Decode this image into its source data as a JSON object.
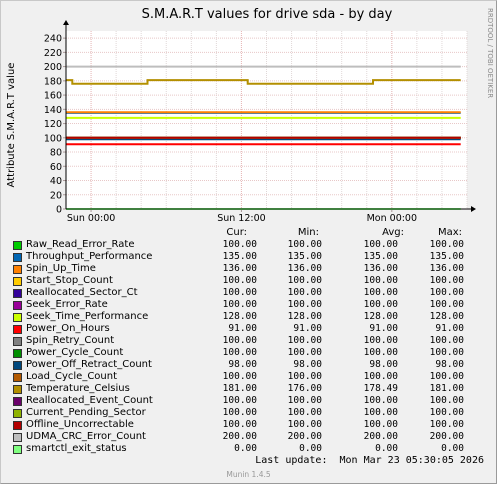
{
  "title": "S.M.A.R.T values for drive sda - by day",
  "ylabel": "Attribute S.M.A.R.T value",
  "watermark": "RRDTOOL / TOBI OETIKER",
  "legend_headers": {
    "cur": "Cur:",
    "min": "Min:",
    "avg": "Avg:",
    "max": "Max:"
  },
  "legend": [
    {
      "name": "Raw_Read_Error_Rate",
      "color": "#00cc00",
      "cur": "100.00",
      "min": "100.00",
      "avg": "100.00",
      "max": "100.00"
    },
    {
      "name": "Throughput_Performance",
      "color": "#0066b3",
      "cur": "135.00",
      "min": "135.00",
      "avg": "135.00",
      "max": "135.00"
    },
    {
      "name": "Spin_Up_Time",
      "color": "#ff8000",
      "cur": "136.00",
      "min": "136.00",
      "avg": "136.00",
      "max": "136.00"
    },
    {
      "name": "Start_Stop_Count",
      "color": "#ffcc00",
      "cur": "100.00",
      "min": "100.00",
      "avg": "100.00",
      "max": "100.00"
    },
    {
      "name": "Reallocated_Sector_Ct",
      "color": "#330099",
      "cur": "100.00",
      "min": "100.00",
      "avg": "100.00",
      "max": "100.00"
    },
    {
      "name": "Seek_Error_Rate",
      "color": "#990099",
      "cur": "100.00",
      "min": "100.00",
      "avg": "100.00",
      "max": "100.00"
    },
    {
      "name": "Seek_Time_Performance",
      "color": "#ccff00",
      "cur": "128.00",
      "min": "128.00",
      "avg": "128.00",
      "max": "128.00"
    },
    {
      "name": "Power_On_Hours",
      "color": "#ff0000",
      "cur": "91.00",
      "min": "91.00",
      "avg": "91.00",
      "max": "91.00"
    },
    {
      "name": "Spin_Retry_Count",
      "color": "#808080",
      "cur": "100.00",
      "min": "100.00",
      "avg": "100.00",
      "max": "100.00"
    },
    {
      "name": "Power_Cycle_Count",
      "color": "#008f00",
      "cur": "100.00",
      "min": "100.00",
      "avg": "100.00",
      "max": "100.00"
    },
    {
      "name": "Power_Off_Retract_Count",
      "color": "#00487d",
      "cur": "98.00",
      "min": "98.00",
      "avg": "98.00",
      "max": "98.00"
    },
    {
      "name": "Load_Cycle_Count",
      "color": "#b35a00",
      "cur": "100.00",
      "min": "100.00",
      "avg": "100.00",
      "max": "100.00"
    },
    {
      "name": "Temperature_Celsius",
      "color": "#b38f00",
      "cur": "181.00",
      "min": "176.00",
      "avg": "178.49",
      "max": "181.00"
    },
    {
      "name": "Reallocated_Event_Count",
      "color": "#6b006b",
      "cur": "100.00",
      "min": "100.00",
      "avg": "100.00",
      "max": "100.00"
    },
    {
      "name": "Current_Pending_Sector",
      "color": "#8fb300",
      "cur": "100.00",
      "min": "100.00",
      "avg": "100.00",
      "max": "100.00"
    },
    {
      "name": "Offline_Uncorrectable",
      "color": "#b30000",
      "cur": "100.00",
      "min": "100.00",
      "avg": "100.00",
      "max": "100.00"
    },
    {
      "name": "UDMA_CRC_Error_Count",
      "color": "#bebebe",
      "cur": "200.00",
      "min": "200.00",
      "avg": "200.00",
      "max": "200.00"
    },
    {
      "name": "smartctl_exit_status",
      "color": "#80ff80",
      "cur": "0.00",
      "min": "0.00",
      "avg": "0.00",
      "max": "0.00"
    }
  ],
  "last_update": "Last update:  Mon Mar 23 05:30:05 2026",
  "footer": "Munin 1.4.5",
  "chart_data": {
    "type": "line",
    "title": "S.M.A.R.T values for drive sda - by day",
    "ylabel": "Attribute S.M.A.R.T value",
    "xlabel": "",
    "ylim": [
      0,
      250
    ],
    "yticks": [
      0,
      20,
      40,
      60,
      80,
      100,
      120,
      140,
      160,
      180,
      200,
      220,
      240
    ],
    "xlim": [
      -2,
      30
    ],
    "xticks": [
      {
        "value": 0,
        "label": "Sun 00:00"
      },
      {
        "value": 12,
        "label": "Sun 12:00"
      },
      {
        "value": 24,
        "label": "Mon 00:00"
      }
    ],
    "grid": true,
    "series": [
      {
        "name": "Raw_Read_Error_Rate",
        "color": "#00cc00",
        "points": [
          [
            -2,
            100
          ],
          [
            29.5,
            100
          ]
        ]
      },
      {
        "name": "Throughput_Performance",
        "color": "#0066b3",
        "points": [
          [
            -2,
            135
          ],
          [
            29.5,
            135
          ]
        ]
      },
      {
        "name": "Spin_Up_Time",
        "color": "#ff8000",
        "points": [
          [
            -2,
            136
          ],
          [
            29.5,
            136
          ]
        ]
      },
      {
        "name": "Start_Stop_Count",
        "color": "#ffcc00",
        "points": [
          [
            -2,
            100
          ],
          [
            29.5,
            100
          ]
        ]
      },
      {
        "name": "Reallocated_Sector_Ct",
        "color": "#330099",
        "points": [
          [
            -2,
            100
          ],
          [
            29.5,
            100
          ]
        ]
      },
      {
        "name": "Seek_Error_Rate",
        "color": "#990099",
        "points": [
          [
            -2,
            100
          ],
          [
            29.5,
            100
          ]
        ]
      },
      {
        "name": "Seek_Time_Performance",
        "color": "#ccff00",
        "points": [
          [
            -2,
            128
          ],
          [
            29.5,
            128
          ]
        ]
      },
      {
        "name": "Power_On_Hours",
        "color": "#ff0000",
        "points": [
          [
            -2,
            91
          ],
          [
            29.5,
            91
          ]
        ]
      },
      {
        "name": "Spin_Retry_Count",
        "color": "#808080",
        "points": [
          [
            -2,
            100
          ],
          [
            29.5,
            100
          ]
        ]
      },
      {
        "name": "Power_Cycle_Count",
        "color": "#008f00",
        "points": [
          [
            -2,
            100
          ],
          [
            29.5,
            100
          ]
        ]
      },
      {
        "name": "Power_Off_Retract_Count",
        "color": "#00487d",
        "points": [
          [
            -2,
            98
          ],
          [
            29.5,
            98
          ]
        ]
      },
      {
        "name": "Load_Cycle_Count",
        "color": "#b35a00",
        "points": [
          [
            -2,
            100
          ],
          [
            29.5,
            100
          ]
        ]
      },
      {
        "name": "Temperature_Celsius",
        "color": "#b38f00",
        "points": [
          [
            -2,
            181
          ],
          [
            -1.5,
            181
          ],
          [
            -1.5,
            176
          ],
          [
            4.5,
            176
          ],
          [
            4.5,
            181
          ],
          [
            12.5,
            181
          ],
          [
            12.5,
            176
          ],
          [
            22.5,
            176
          ],
          [
            22.5,
            181
          ],
          [
            29.5,
            181
          ]
        ]
      },
      {
        "name": "Reallocated_Event_Count",
        "color": "#6b006b",
        "points": [
          [
            -2,
            100
          ],
          [
            29.5,
            100
          ]
        ]
      },
      {
        "name": "Current_Pending_Sector",
        "color": "#8fb300",
        "points": [
          [
            -2,
            100
          ],
          [
            29.5,
            100
          ]
        ]
      },
      {
        "name": "Offline_Uncorrectable",
        "color": "#b30000",
        "points": [
          [
            -2,
            100
          ],
          [
            29.5,
            100
          ]
        ]
      },
      {
        "name": "UDMA_CRC_Error_Count",
        "color": "#bebebe",
        "points": [
          [
            -2,
            200
          ],
          [
            29.5,
            200
          ]
        ]
      },
      {
        "name": "smartctl_exit_status",
        "color": "#80ff80",
        "points": [
          [
            -2,
            0
          ],
          [
            29.5,
            0
          ]
        ]
      }
    ]
  }
}
